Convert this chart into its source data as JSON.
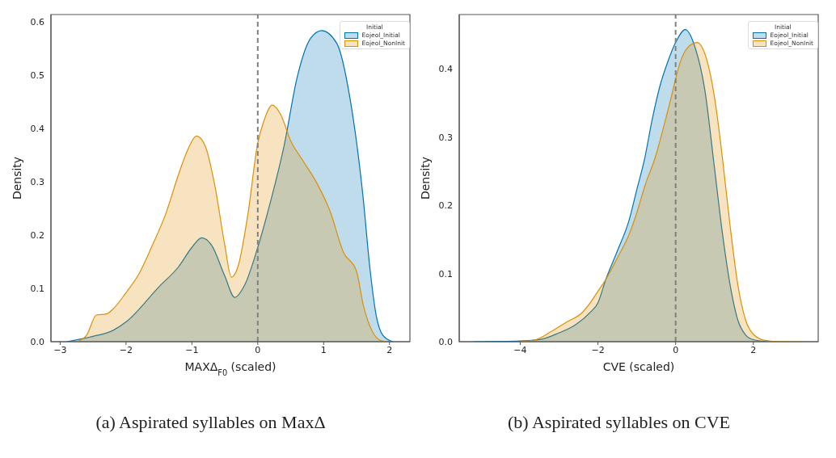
{
  "chart_data": [
    {
      "type": "area",
      "title": "(a) Aspirated syllables on MaxΔ",
      "xlabel": "MAXΔ$_{F0}$ (scaled)",
      "ylabel": "Density",
      "legend_title": "Initial",
      "legend": "top right",
      "xlim": [
        -3.14,
        2.31
      ],
      "ylim": [
        0,
        0.614
      ],
      "xticks": [
        -3,
        -2,
        -1,
        0,
        1,
        2
      ],
      "yticks": [
        {
          "value": 0,
          "label": "0.0"
        },
        0.1,
        0.2,
        0.3,
        0.4,
        0.5,
        0.6
      ],
      "ref_lines": [
        {
          "axis": "x",
          "value": 0,
          "color": "#808080",
          "line_style": "dashed"
        }
      ],
      "series": [
        {
          "name": "Eojeol_Initial",
          "color": "#0173b2",
          "x": [
            -2.9,
            -2.5,
            -2.2,
            -2.0,
            -1.5,
            -1.2,
            -1.0,
            -0.85,
            -0.7,
            -0.5,
            -0.35,
            -0.2,
            0,
            0.2,
            0.4,
            0.6,
            0.8,
            0.97,
            1.2,
            1.4,
            1.6,
            1.7,
            1.8,
            1.9,
            2.05
          ],
          "values": [
            0,
            0.01,
            0.021,
            0.037,
            0.103,
            0.141,
            0.177,
            0.195,
            0.181,
            0.123,
            0.083,
            0.106,
            0.177,
            0.266,
            0.368,
            0.497,
            0.569,
            0.584,
            0.56,
            0.457,
            0.27,
            0.141,
            0.048,
            0.012,
            0
          ]
        },
        {
          "name": "Eojeol_NonInit",
          "color": "#de8f05",
          "x": [
            -2.75,
            -2.6,
            -2.45,
            -2.3,
            -2.2,
            -2.0,
            -1.8,
            -1.6,
            -1.4,
            -1.2,
            -1.05,
            -0.93,
            -0.8,
            -0.65,
            -0.5,
            -0.4,
            -0.3,
            -0.15,
            0,
            0.1,
            0.22,
            0.35,
            0.5,
            0.7,
            0.9,
            1.1,
            1.3,
            1.5,
            1.6,
            1.7,
            1.85,
            1.95
          ],
          "values": [
            0,
            0.012,
            0.05,
            0.052,
            0.061,
            0.092,
            0.128,
            0.181,
            0.239,
            0.315,
            0.364,
            0.386,
            0.368,
            0.292,
            0.181,
            0.121,
            0.141,
            0.239,
            0.373,
            0.417,
            0.444,
            0.426,
            0.377,
            0.337,
            0.297,
            0.244,
            0.168,
            0.132,
            0.07,
            0.03,
            0.003,
            0
          ]
        }
      ]
    },
    {
      "type": "area",
      "title": "(b) Aspirated syllables on CVE",
      "xlabel": "CVE (scaled)",
      "ylabel": "Density",
      "legend_title": "Initial",
      "legend": "top right",
      "xlim": [
        -5.57,
        3.67
      ],
      "ylim": [
        0,
        0.48
      ],
      "xticks": [
        -4,
        -2,
        0,
        2
      ],
      "yticks": [
        {
          "value": 0,
          "label": "0.0"
        },
        0.1,
        0.2,
        0.3,
        0.4
      ],
      "ref_lines": [
        {
          "axis": "x",
          "value": 0,
          "color": "#808080",
          "line_style": "dashed"
        }
      ],
      "series": [
        {
          "name": "Eojeol_Initial",
          "color": "#0173b2",
          "x": [
            -5.2,
            -4.0,
            -3.5,
            -3.0,
            -2.6,
            -2.2,
            -2.0,
            -1.8,
            -1.5,
            -1.2,
            -1.0,
            -0.8,
            -0.6,
            -0.4,
            -0.2,
            0,
            0.25,
            0.5,
            0.75,
            1.0,
            1.2,
            1.4,
            1.6,
            1.8,
            2.0,
            2.4
          ],
          "values": [
            0,
            0.001,
            0.003,
            0.013,
            0.024,
            0.043,
            0.057,
            0.091,
            0.133,
            0.178,
            0.223,
            0.268,
            0.327,
            0.376,
            0.411,
            0.439,
            0.458,
            0.432,
            0.37,
            0.255,
            0.161,
            0.084,
            0.032,
            0.01,
            0.003,
            0
          ]
        },
        {
          "name": "Eojeol_NonInit",
          "color": "#de8f05",
          "x": [
            -4.0,
            -3.6,
            -3.2,
            -2.8,
            -2.4,
            -2.2,
            -2.0,
            -1.8,
            -1.5,
            -1.2,
            -1.0,
            -0.8,
            -0.5,
            -0.3,
            -0.1,
            0.1,
            0.3,
            0.55,
            0.8,
            1.0,
            1.2,
            1.4,
            1.6,
            1.8,
            2.0,
            2.3,
            2.7,
            3.3
          ],
          "values": [
            0,
            0.003,
            0.015,
            0.029,
            0.043,
            0.057,
            0.074,
            0.091,
            0.123,
            0.157,
            0.189,
            0.227,
            0.275,
            0.317,
            0.362,
            0.407,
            0.431,
            0.439,
            0.414,
            0.359,
            0.272,
            0.171,
            0.084,
            0.032,
            0.011,
            0.002,
            0,
            0
          ]
        }
      ]
    }
  ]
}
